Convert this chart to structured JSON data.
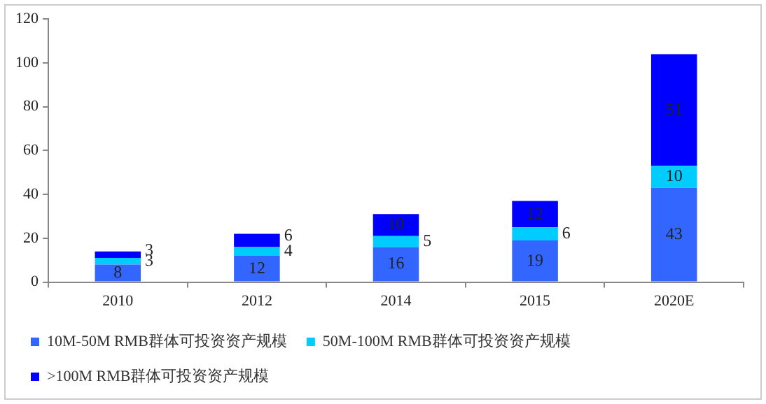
{
  "chart_data": {
    "type": "bar",
    "stacked": true,
    "categories": [
      "2010",
      "2012",
      "2014",
      "2015",
      "2020E"
    ],
    "series": [
      {
        "name": "10M-50M RMB群体可投资资产规模",
        "color": "#3366ff",
        "values": [
          8,
          12,
          16,
          19,
          43
        ]
      },
      {
        "name": "50M-100M RMB群体可投资资产规模",
        "color": "#00ccff",
        "values": [
          3,
          4,
          5,
          6,
          10
        ]
      },
      {
        "name": ">100M RMB群体可投资资产规模",
        "color": "#0000ff",
        "values": [
          3,
          6,
          10,
          12,
          51
        ]
      }
    ],
    "ylim": [
      0,
      120
    ],
    "yticks": [
      0,
      20,
      40,
      60,
      80,
      100,
      120
    ],
    "grid": false,
    "legend": "bottom",
    "data_labels": true
  }
}
